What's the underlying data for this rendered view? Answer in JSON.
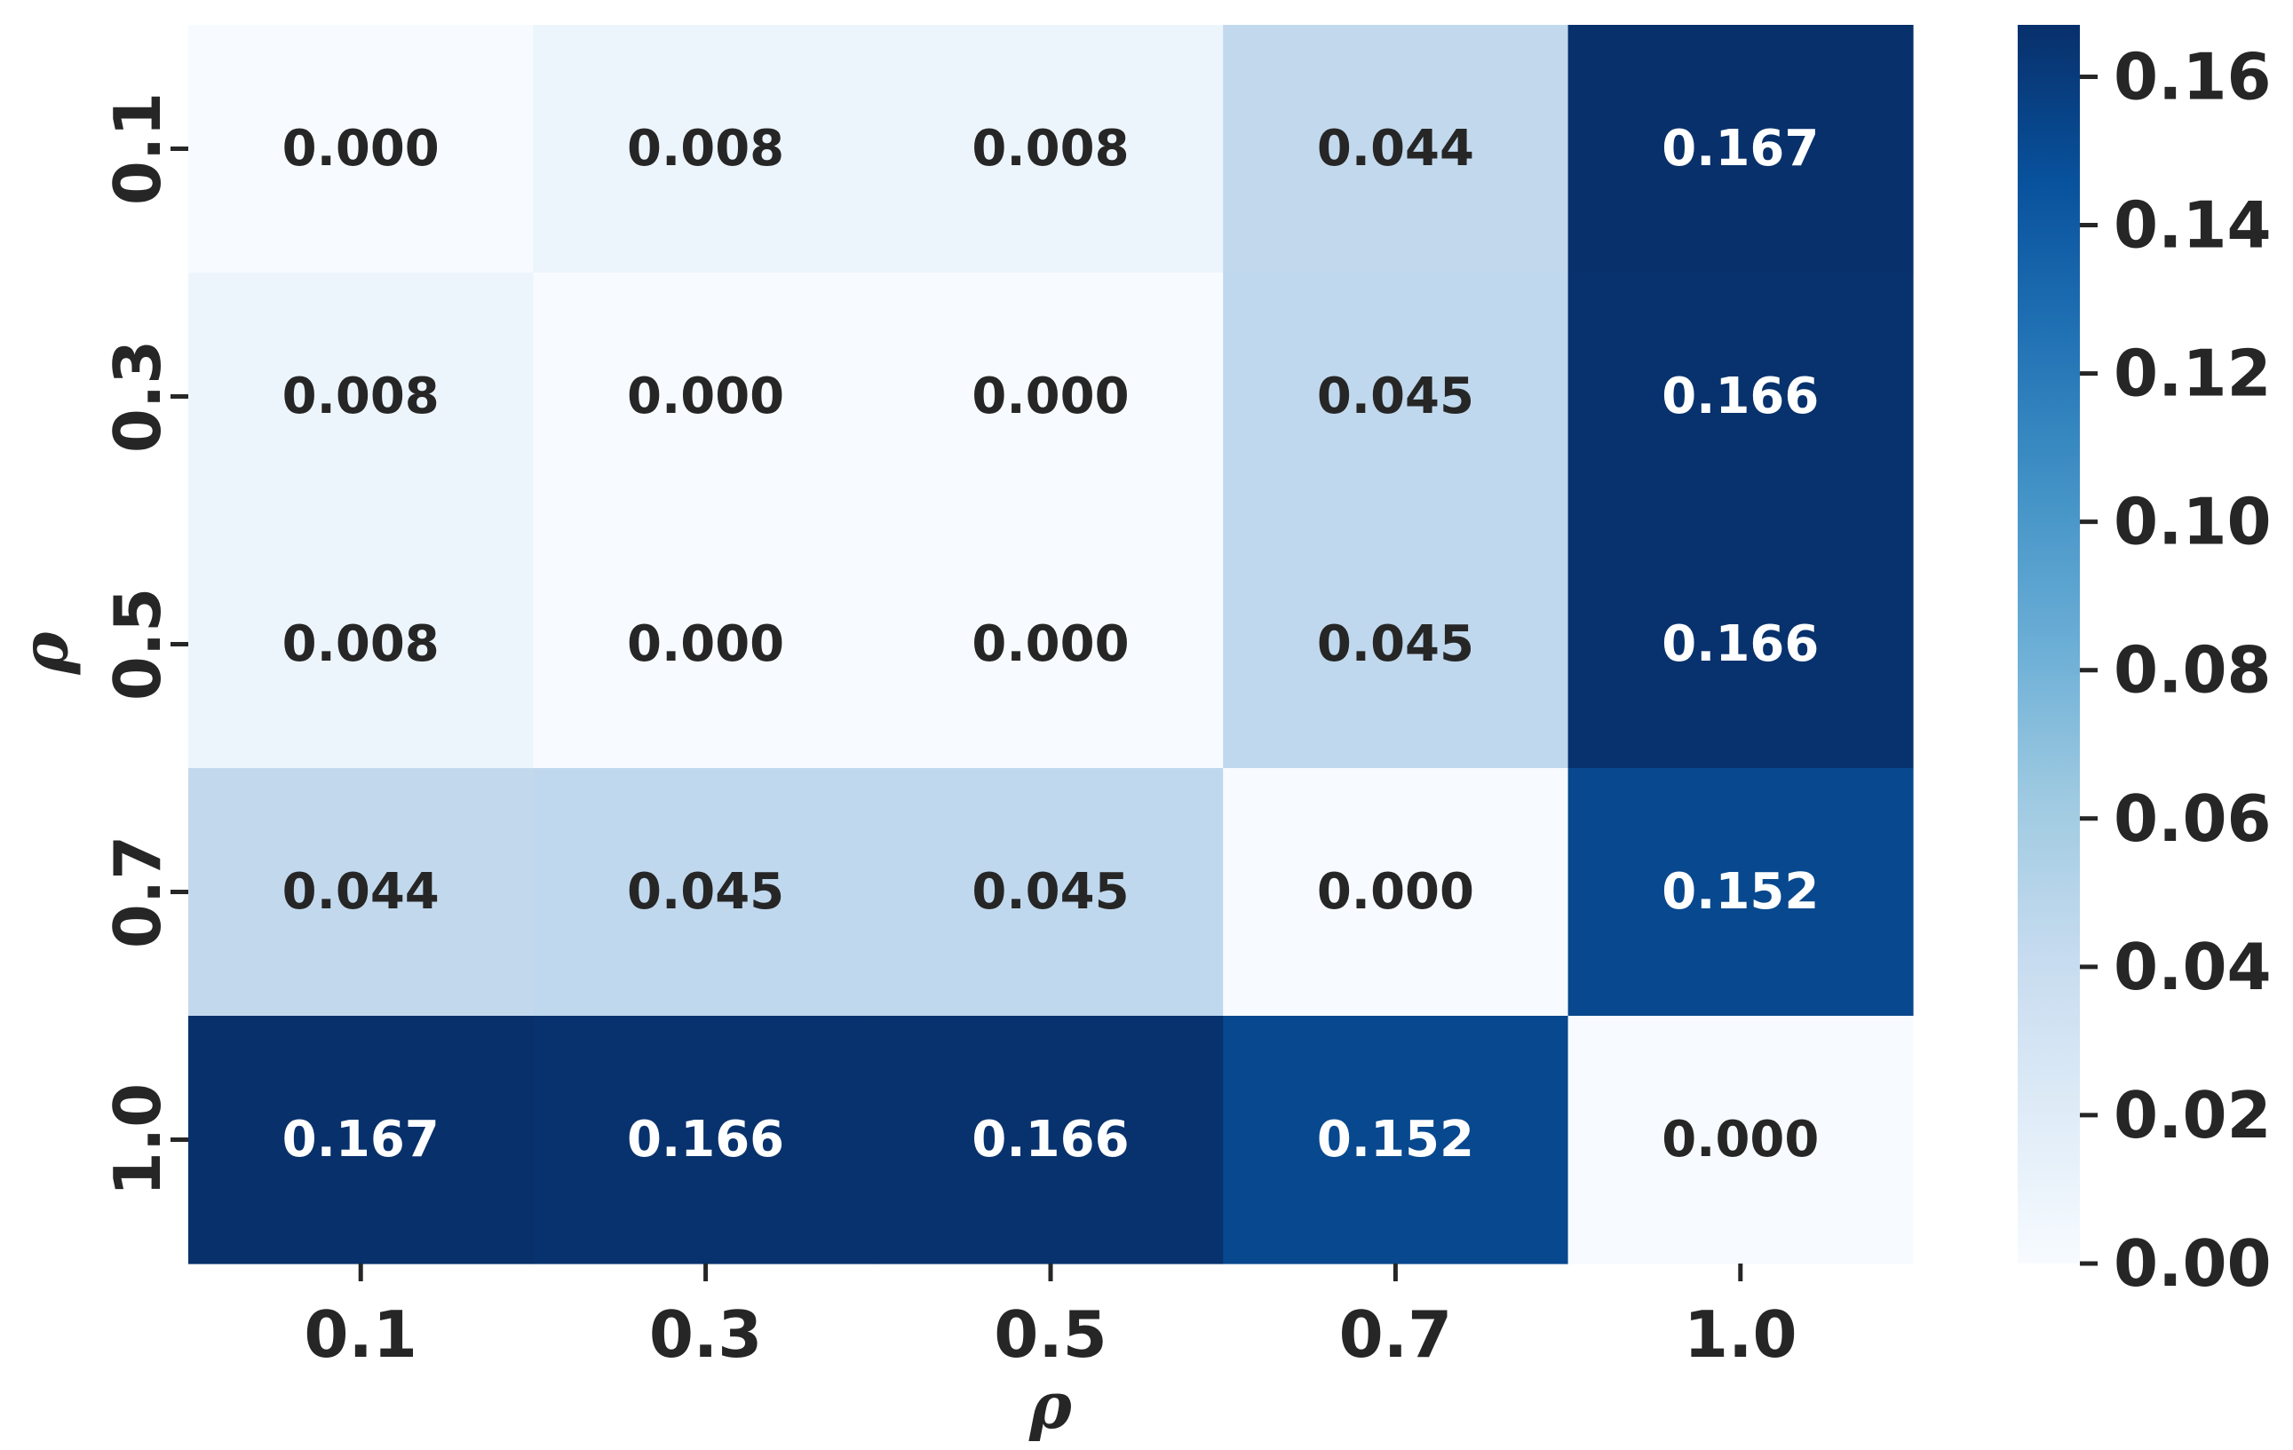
{
  "chart_data": {
    "type": "heatmap",
    "x_categories": [
      "0.1",
      "0.3",
      "0.5",
      "0.7",
      "1.0"
    ],
    "y_categories": [
      "0.1",
      "0.3",
      "0.5",
      "0.7",
      "1.0"
    ],
    "values": [
      [
        0.0,
        0.008,
        0.008,
        0.044,
        0.167
      ],
      [
        0.008,
        0.0,
        0.0,
        0.045,
        0.166
      ],
      [
        0.008,
        0.0,
        0.0,
        0.045,
        0.166
      ],
      [
        0.044,
        0.045,
        0.045,
        0.0,
        0.152
      ],
      [
        0.167,
        0.166,
        0.166,
        0.152,
        0.0
      ]
    ],
    "value_labels": [
      [
        "0.000",
        "0.008",
        "0.008",
        "0.044",
        "0.167"
      ],
      [
        "0.008",
        "0.000",
        "0.000",
        "0.045",
        "0.166"
      ],
      [
        "0.008",
        "0.000",
        "0.000",
        "0.045",
        "0.166"
      ],
      [
        "0.044",
        "0.045",
        "0.045",
        "0.000",
        "0.152"
      ],
      [
        "0.167",
        "0.166",
        "0.166",
        "0.152",
        "0.000"
      ]
    ],
    "xlabel": "ρ",
    "ylabel": "ρ",
    "colorbar": {
      "colormap": "Blues",
      "min": 0.0,
      "max": 0.167,
      "ticks": [
        0.0,
        0.02,
        0.04,
        0.06,
        0.08,
        0.1,
        0.12,
        0.14,
        0.16
      ],
      "tick_labels": [
        "0.00",
        "0.02",
        "0.04",
        "0.06",
        "0.08",
        "0.10",
        "0.12",
        "0.14",
        "0.16"
      ]
    },
    "grid": false,
    "legend": "colorbar-right"
  }
}
